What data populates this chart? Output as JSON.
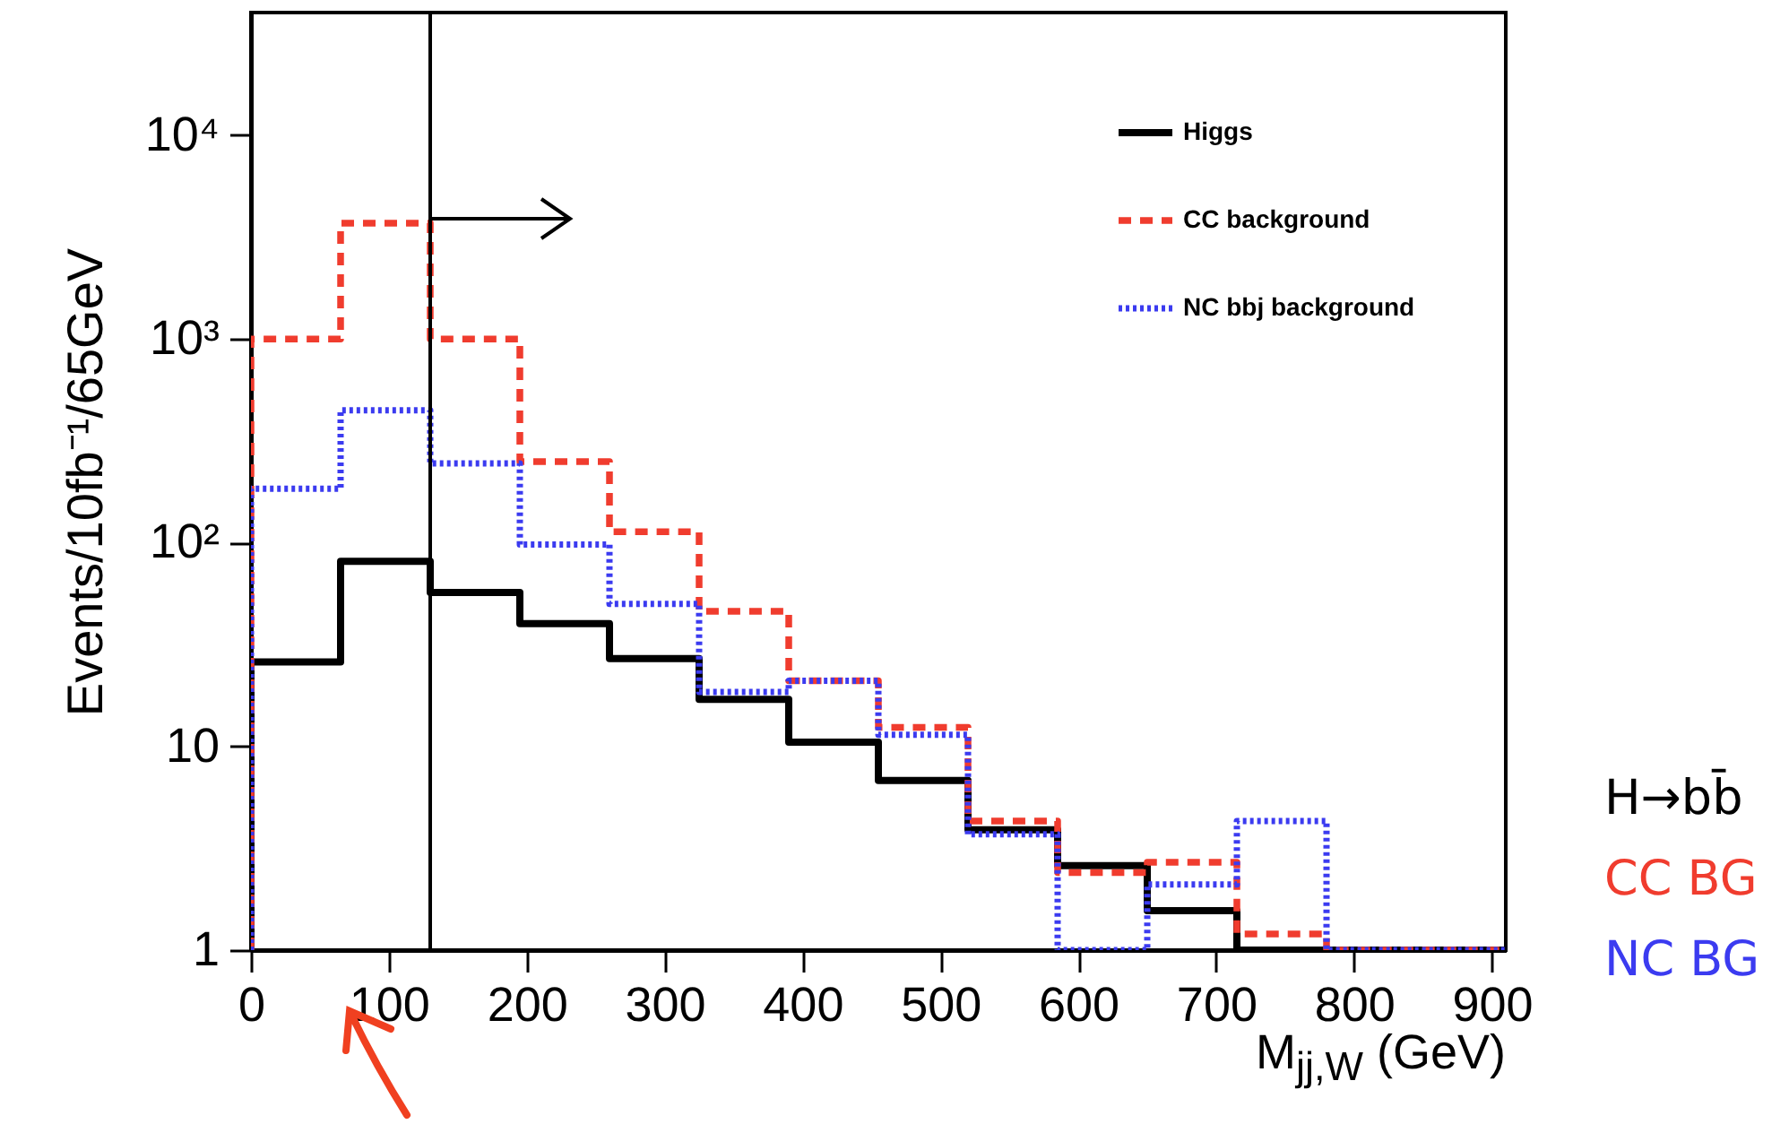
{
  "chart_data": {
    "type": "histogram",
    "xlabel": "M$_{jj,W}$ (GeV)",
    "ylabel": "Events/10fb⁻¹/65GeV",
    "bins": [
      0,
      65,
      130,
      195,
      260,
      325,
      390,
      455,
      520,
      585,
      650,
      715,
      780,
      845,
      910
    ],
    "series": [
      {
        "name": "Higgs",
        "color": "#000000",
        "line_style": "solid",
        "values": [
          26,
          81,
          57,
          40,
          27,
          17,
          10.5,
          6.8,
          3.9,
          2.6,
          1.56,
          1,
          1,
          1
        ]
      },
      {
        "name": "CC background",
        "color": "#f03c2e",
        "line_style": "dashed",
        "values": [
          1000,
          3700,
          1000,
          250,
          113,
          46,
          21,
          12.4,
          4.3,
          2.4,
          2.7,
          1.2,
          1,
          1
        ]
      },
      {
        "name": "NC bbj background",
        "color": "#3b3bf0",
        "line_style": "dotted",
        "values": [
          184,
          446,
          245,
          98,
          50,
          18.5,
          21,
          11.4,
          3.7,
          1,
          2.1,
          4.3,
          1,
          1
        ]
      }
    ],
    "xlim": [
      0,
      910
    ],
    "xticks": [
      0,
      100,
      200,
      300,
      400,
      500,
      600,
      700,
      800,
      900
    ],
    "ylim": [
      1,
      40000
    ],
    "yticks": [
      {
        "value": 1,
        "label": "1"
      },
      {
        "value": 10,
        "label": "10"
      },
      {
        "value": 100,
        "label": "10²"
      },
      {
        "value": 1000,
        "label": "10³"
      },
      {
        "value": 10000,
        "label": "10⁴"
      }
    ],
    "log": "y",
    "legend": "top right",
    "grid": false,
    "ref_lines": [
      {
        "axis": "x",
        "value": 130,
        "color": "#000000"
      }
    ],
    "annotations": [
      "H→bb̄",
      "CC BG",
      "NC BG"
    ]
  }
}
